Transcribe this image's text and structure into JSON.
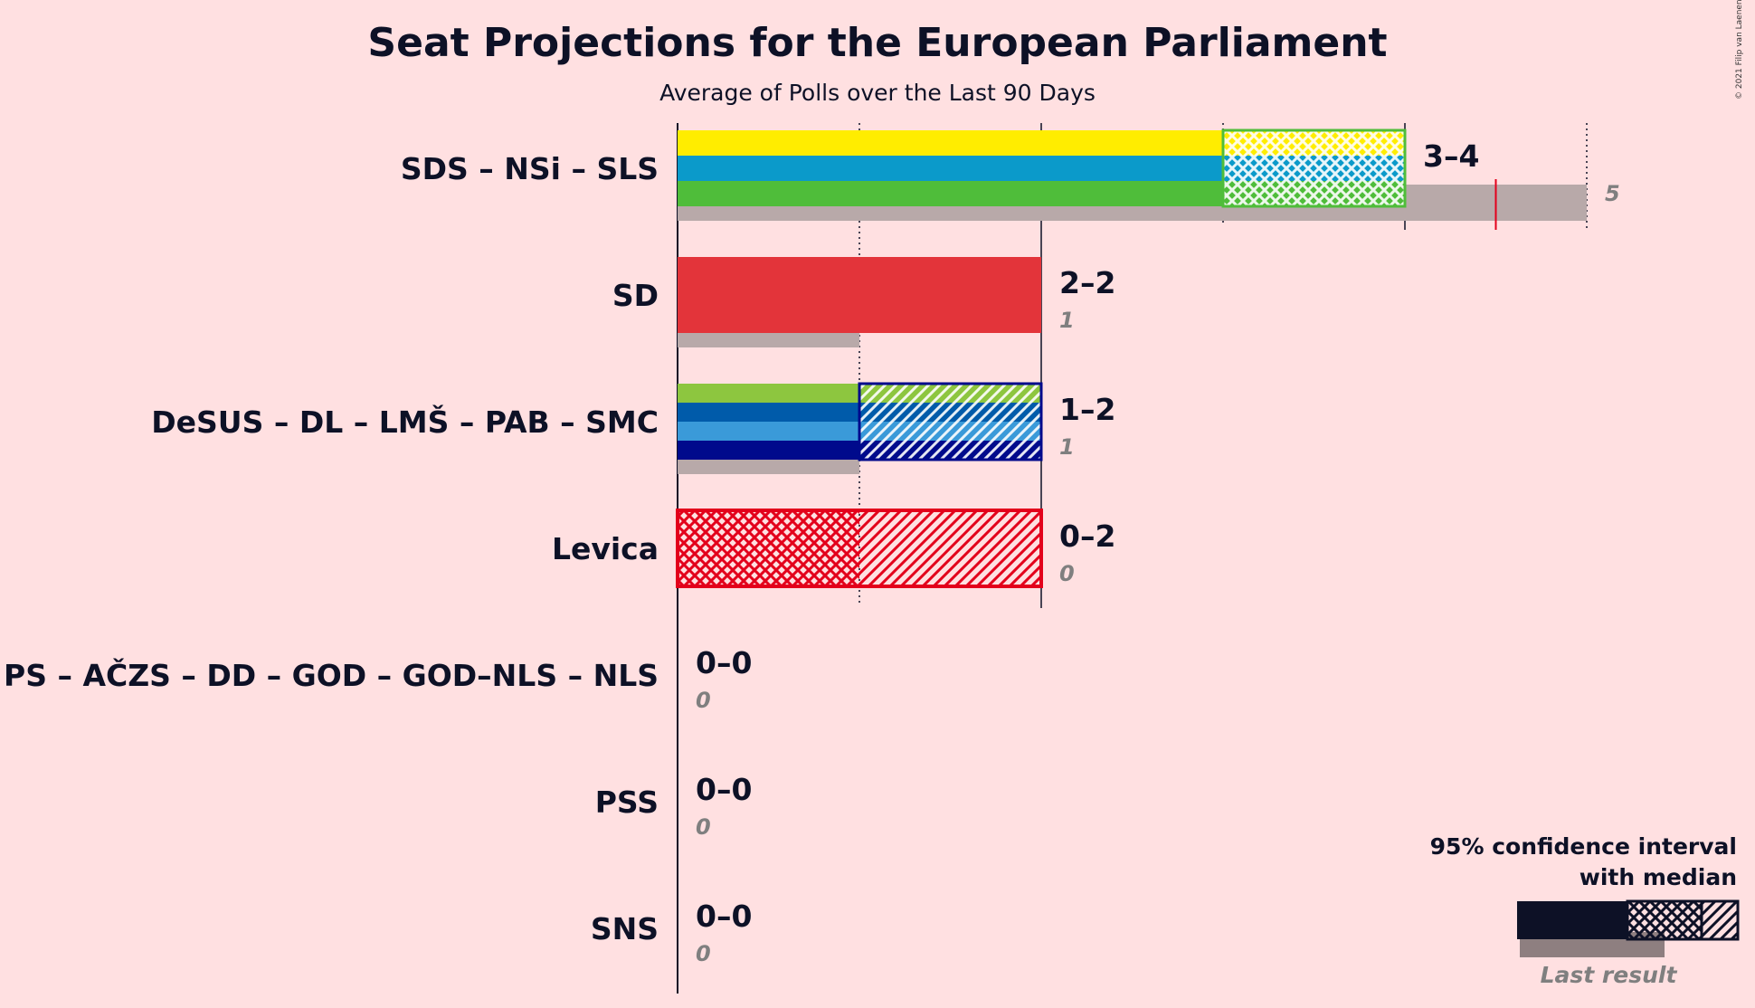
{
  "header": {
    "title": "Seat Projections for the European Parliament",
    "subtitle": "Average of Polls over the Last 90 Days",
    "copyright": "© 2021 Filip van Laenen"
  },
  "legend": {
    "line1": "95% confidence interval",
    "line2": "with median",
    "last_result": "Last result",
    "color_solid": "#0D1126",
    "color_last": "#7F7F7F"
  },
  "chart_data": {
    "type": "bar",
    "title": "Seat Projections for the European Parliament",
    "subtitle": "Average of Polls over the Last 90 Days",
    "xlim": [
      0,
      5
    ],
    "rows": [
      {
        "party": "SDS – NSi – SLS",
        "low": 3,
        "median": 3,
        "high": 4,
        "range_label": "3–4",
        "last_result": 5,
        "last_label": "5",
        "majority_marker": 4.5,
        "colors": [
          "#FFED00",
          "#0B9ACA",
          "#4FBD3A"
        ]
      },
      {
        "party": "SD",
        "low": 2,
        "median": 2,
        "high": 2,
        "range_label": "2–2",
        "last_result": 1,
        "last_label": "1",
        "colors": [
          "#E3343A"
        ]
      },
      {
        "party": "DeSUS – DL – LMŠ – PAB – SMC",
        "low": 1,
        "median": 1,
        "high": 2,
        "range_label": "1–2",
        "last_result": 1,
        "last_label": "1",
        "colors": [
          "#8DC63F",
          "#005BAA",
          "#3A9AD9",
          "#000A8C"
        ]
      },
      {
        "party": "Levica",
        "low": 0,
        "median": 1,
        "high": 2,
        "range_label": "0–2",
        "last_result": 0,
        "last_label": "0",
        "colors": [
          "#E3001B"
        ]
      },
      {
        "party": "PS – AČZS – DD – GOD – GOD–NLS – NLS",
        "low": 0,
        "median": 0,
        "high": 0,
        "range_label": "0–0",
        "last_result": 0,
        "last_label": "0",
        "colors": [
          "#888888"
        ]
      },
      {
        "party": "PSS",
        "low": 0,
        "median": 0,
        "high": 0,
        "range_label": "0–0",
        "last_result": 0,
        "last_label": "0",
        "colors": [
          "#888888"
        ]
      },
      {
        "party": "SNS",
        "low": 0,
        "median": 0,
        "high": 0,
        "range_label": "0–0",
        "last_result": 0,
        "last_label": "0",
        "colors": [
          "#888888"
        ]
      }
    ]
  }
}
